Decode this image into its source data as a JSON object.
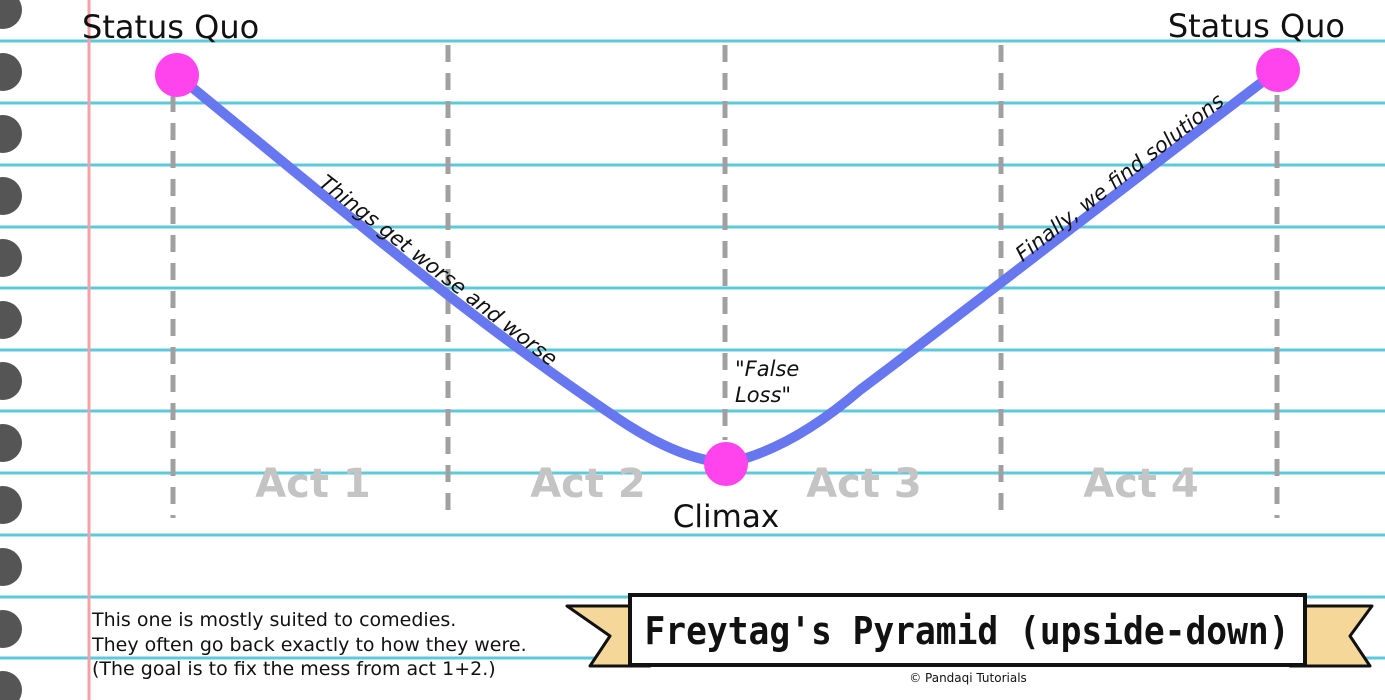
{
  "labels": {
    "status_quo_left": "Status Quo",
    "status_quo_right": "Status Quo",
    "climax": "Climax",
    "false_loss_line1": "\"False",
    "false_loss_line2": "Loss\"",
    "descending": "Things get worse and worse",
    "ascending": "Finally, we find solutions"
  },
  "acts": [
    "Act 1",
    "Act 2",
    "Act 3",
    "Act 4"
  ],
  "notes": [
    "This one is mostly suited to comedies.",
    "They often go back exactly to how they were.",
    "(The goal is to fix the mess from act 1+2.)"
  ],
  "banner": {
    "title": "Freytag's Pyramid (upside-down)",
    "credit": "© Pandaqi Tutorials"
  },
  "colors": {
    "curve": "#6677f0",
    "points": "#ff44ee",
    "rule_lines": "#5ec8dc",
    "margin_line": "#f4a0a8",
    "dividers": "#a0a0a0",
    "act_labels": "#c4c4c4",
    "banner_ribbon": "#f6d79a",
    "binder_holes": "#555555"
  }
}
